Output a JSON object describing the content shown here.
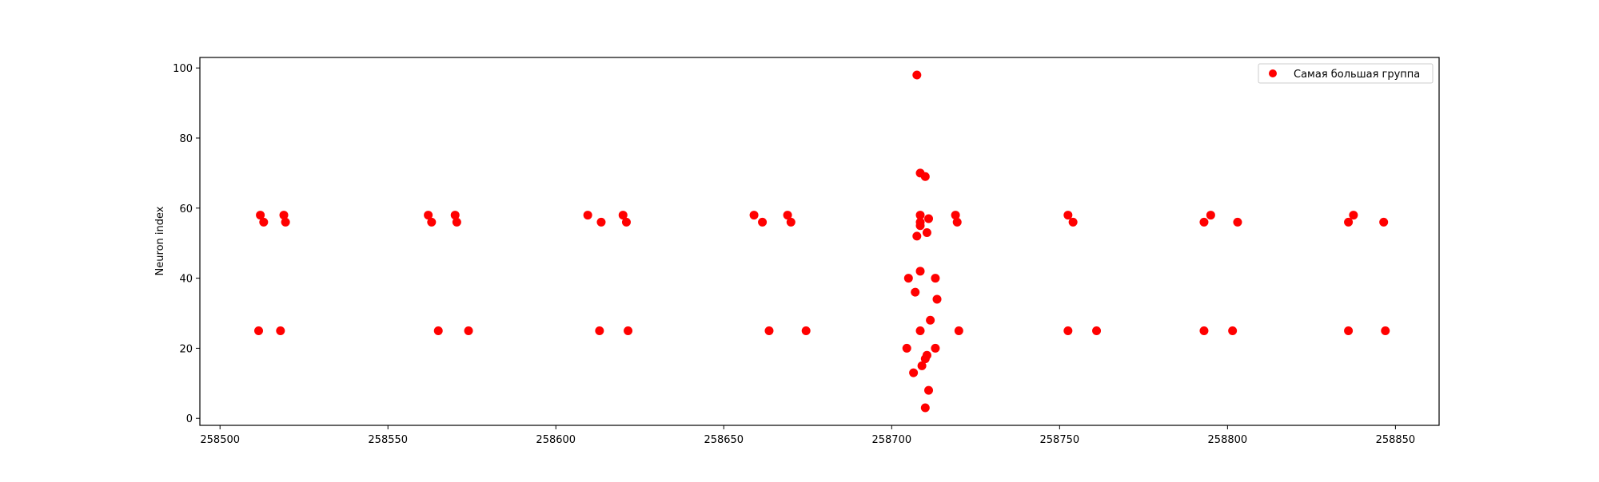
{
  "chart_data": {
    "type": "scatter",
    "title": "",
    "xlabel": "",
    "ylabel": "Neuron index",
    "xlim": [
      258494,
      258863
    ],
    "ylim": [
      -2,
      103
    ],
    "x_ticks": [
      258500,
      258550,
      258600,
      258650,
      258700,
      258750,
      258800,
      258850
    ],
    "y_ticks": [
      0,
      20,
      40,
      60,
      80,
      100
    ],
    "grid": false,
    "legend": {
      "placement": "top-right",
      "entries": [
        "Самая большая группа"
      ]
    },
    "series": [
      {
        "name": "Самая большая группа",
        "color": "#ff0000",
        "marker": "circle",
        "points": [
          {
            "x": 258511.5,
            "y": 25
          },
          {
            "x": 258512,
            "y": 58
          },
          {
            "x": 258513,
            "y": 56
          },
          {
            "x": 258518,
            "y": 25
          },
          {
            "x": 258519,
            "y": 58
          },
          {
            "x": 258519.5,
            "y": 56
          },
          {
            "x": 258562,
            "y": 58
          },
          {
            "x": 258563,
            "y": 56
          },
          {
            "x": 258565,
            "y": 25
          },
          {
            "x": 258570,
            "y": 58
          },
          {
            "x": 258570.5,
            "y": 56
          },
          {
            "x": 258574,
            "y": 25
          },
          {
            "x": 258609.5,
            "y": 58
          },
          {
            "x": 258613,
            "y": 25
          },
          {
            "x": 258613.5,
            "y": 56
          },
          {
            "x": 258620,
            "y": 58
          },
          {
            "x": 258621,
            "y": 56
          },
          {
            "x": 258621.5,
            "y": 25
          },
          {
            "x": 258659,
            "y": 58
          },
          {
            "x": 258661.5,
            "y": 56
          },
          {
            "x": 258663.5,
            "y": 25
          },
          {
            "x": 258669,
            "y": 58
          },
          {
            "x": 258670,
            "y": 56
          },
          {
            "x": 258674.5,
            "y": 25
          },
          {
            "x": 258704.5,
            "y": 20
          },
          {
            "x": 258705,
            "y": 40
          },
          {
            "x": 258706.5,
            "y": 13
          },
          {
            "x": 258707,
            "y": 36
          },
          {
            "x": 258707.5,
            "y": 98
          },
          {
            "x": 258707.5,
            "y": 52
          },
          {
            "x": 258708.5,
            "y": 25
          },
          {
            "x": 258708.5,
            "y": 42
          },
          {
            "x": 258708.5,
            "y": 55
          },
          {
            "x": 258708.5,
            "y": 56
          },
          {
            "x": 258708.5,
            "y": 58
          },
          {
            "x": 258708.5,
            "y": 70
          },
          {
            "x": 258709,
            "y": 15
          },
          {
            "x": 258710,
            "y": 17
          },
          {
            "x": 258710,
            "y": 69
          },
          {
            "x": 258710,
            "y": 3
          },
          {
            "x": 258710.5,
            "y": 18
          },
          {
            "x": 258710.5,
            "y": 53
          },
          {
            "x": 258711,
            "y": 57
          },
          {
            "x": 258711,
            "y": 8
          },
          {
            "x": 258711.5,
            "y": 28
          },
          {
            "x": 258713,
            "y": 40
          },
          {
            "x": 258713,
            "y": 20
          },
          {
            "x": 258713.5,
            "y": 34
          },
          {
            "x": 258719,
            "y": 58
          },
          {
            "x": 258719.5,
            "y": 56
          },
          {
            "x": 258720,
            "y": 25
          },
          {
            "x": 258752.5,
            "y": 58
          },
          {
            "x": 258752.5,
            "y": 25
          },
          {
            "x": 258754,
            "y": 56
          },
          {
            "x": 258761,
            "y": 25
          },
          {
            "x": 258793,
            "y": 56
          },
          {
            "x": 258793,
            "y": 25
          },
          {
            "x": 258795,
            "y": 58
          },
          {
            "x": 258801.5,
            "y": 25
          },
          {
            "x": 258803,
            "y": 56
          },
          {
            "x": 258836,
            "y": 56
          },
          {
            "x": 258836,
            "y": 25
          },
          {
            "x": 258837.5,
            "y": 58
          },
          {
            "x": 258846.5,
            "y": 56
          },
          {
            "x": 258847,
            "y": 25
          }
        ]
      }
    ]
  }
}
